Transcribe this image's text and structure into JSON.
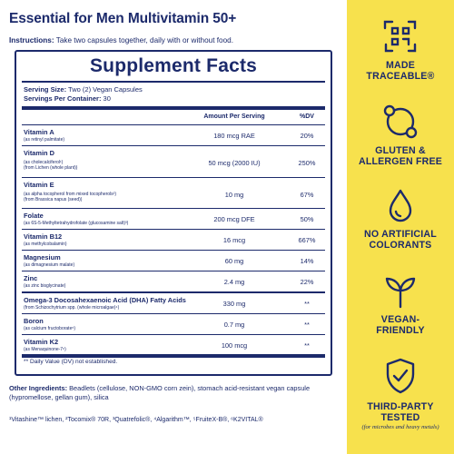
{
  "product_title": "Essential for Men Multivitamin 50+",
  "instructions": {
    "label": "Instructions:",
    "text": " Take two capsules together, daily with or without food."
  },
  "facts": {
    "title": "Supplement Facts",
    "serving_size_label": "Serving Size:",
    "serving_size_value": " Two (2) Vegan Capsules",
    "servings_per_container_label": "Servings Per Container:",
    "servings_per_container_value": " 30",
    "col_amount": "Amount Per Serving",
    "col_dv": "%DV",
    "rows": [
      {
        "name": "Vitamin A",
        "sub1": "(as retinyl palmitate)",
        "sub2": "",
        "amount": "180 mcg RAE",
        "dv": "20%"
      },
      {
        "name": "Vitamin D",
        "sub1": "(as cholecalciferol¹)",
        "sub2": "(from Lichen (whole plant))",
        "amount": "50 mcg (2000 IU)",
        "dv": "250%"
      },
      {
        "name": "Vitamin E",
        "sub1": "(as alpha tocopherol from mixed tocopherols²)",
        "sub2": "(from Brassica napus (seed))",
        "amount": "10 mg",
        "dv": "67%"
      },
      {
        "name": "Folate",
        "sub1": "(as 6S-5-Methyltetrahydrofolate (glucosamine salt)³)",
        "sub2": "",
        "amount": "200 mcg DFE",
        "dv": "50%"
      },
      {
        "name": "Vitamin B12",
        "sub1": "(as methylcobalamin)",
        "sub2": "",
        "amount": "16 mcg",
        "dv": "667%"
      },
      {
        "name": "Magnesium",
        "sub1": "(as dimagnesium malate)",
        "sub2": "",
        "amount": "60 mg",
        "dv": "14%"
      },
      {
        "name": "Zinc",
        "sub1": "(as zinc bisglycinate)",
        "sub2": "",
        "amount": "2.4 mg",
        "dv": "22%"
      },
      {
        "name": "Omega-3 Docosahexaenoic Acid (DHA) Fatty Acids",
        "sub1": "(from Schizochytrium spp. (whole microalgae)⁴)",
        "sub2": "",
        "amount": "330 mg",
        "dv": "**"
      },
      {
        "name": "Boron",
        "sub1": "(as calcium fructoborate⁵)",
        "sub2": "",
        "amount": "0.7 mg",
        "dv": "**"
      },
      {
        "name": "Vitamin K2",
        "sub1": "(as Menaquinone-7⁶)",
        "sub2": "",
        "amount": "100 mcg",
        "dv": "**"
      }
    ],
    "footnote": "** Daily Value (DV) not established."
  },
  "other_ingredients": {
    "label": "Other Ingredients:",
    "text": " Beadlets (cellulose, NON-GMO corn zein), stomach acid-resistant vegan capsule (hypromellose, gellan gum), silica"
  },
  "trademarks": "¹Vitashine™ lichen, ²Tocomix® 70R, ³Quatrefolic®, ⁴Algarithm™, ⁵FruiteX-B®, ⁶K2VITAL®",
  "badges": [
    {
      "icon": "qr-code-icon",
      "line1": "MADE",
      "line2": "TRACEABLE®",
      "note": ""
    },
    {
      "icon": "gluten-free-icon",
      "line1": "GLUTEN &",
      "line2": "ALLERGEN FREE",
      "note": ""
    },
    {
      "icon": "droplet-icon",
      "line1": "NO ARTIFICIAL",
      "line2": "COLORANTS",
      "note": ""
    },
    {
      "icon": "sprout-icon",
      "line1": "VEGAN-",
      "line2": "FRIENDLY",
      "note": ""
    },
    {
      "icon": "shield-check-icon",
      "line1": "THIRD-PARTY",
      "line2": "TESTED",
      "note": "(for microbes and heavy metals)"
    }
  ],
  "colors": {
    "navy": "#1c2a6b",
    "yellow_panel": "#f7e14d",
    "background": "#ffffff"
  }
}
